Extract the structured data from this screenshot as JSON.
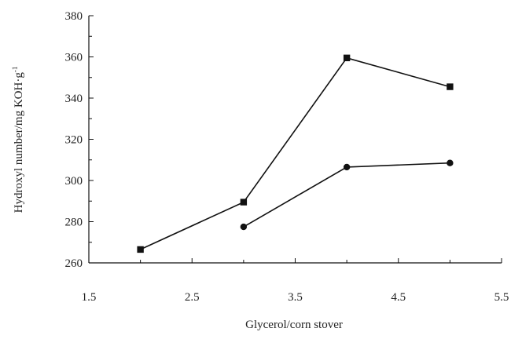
{
  "chart_data": {
    "type": "line",
    "title": "",
    "xlabel": "Glycerol/corn stover",
    "ylabel": "Hydroxyl number/mg KOH·g",
    "ylabel_superscript": "-1",
    "xlim": [
      1.5,
      5.5
    ],
    "ylim": [
      260,
      380
    ],
    "xticks": [
      "1.5",
      "2.5",
      "3.5",
      "4.5",
      "5.5"
    ],
    "yticks": [
      "260",
      "280",
      "300",
      "320",
      "340",
      "360",
      "380"
    ],
    "grid": false,
    "legend": "none",
    "series": [
      {
        "marker": "square",
        "x": [
          2,
          3,
          4,
          5
        ],
        "y": [
          266.5,
          289.5,
          359.5,
          345.5
        ]
      },
      {
        "marker": "circle",
        "x": [
          3,
          4,
          5
        ],
        "y": [
          277.5,
          306.5,
          308.5
        ]
      }
    ],
    "colors": {
      "line": "#111111",
      "axis": "#111111"
    }
  }
}
